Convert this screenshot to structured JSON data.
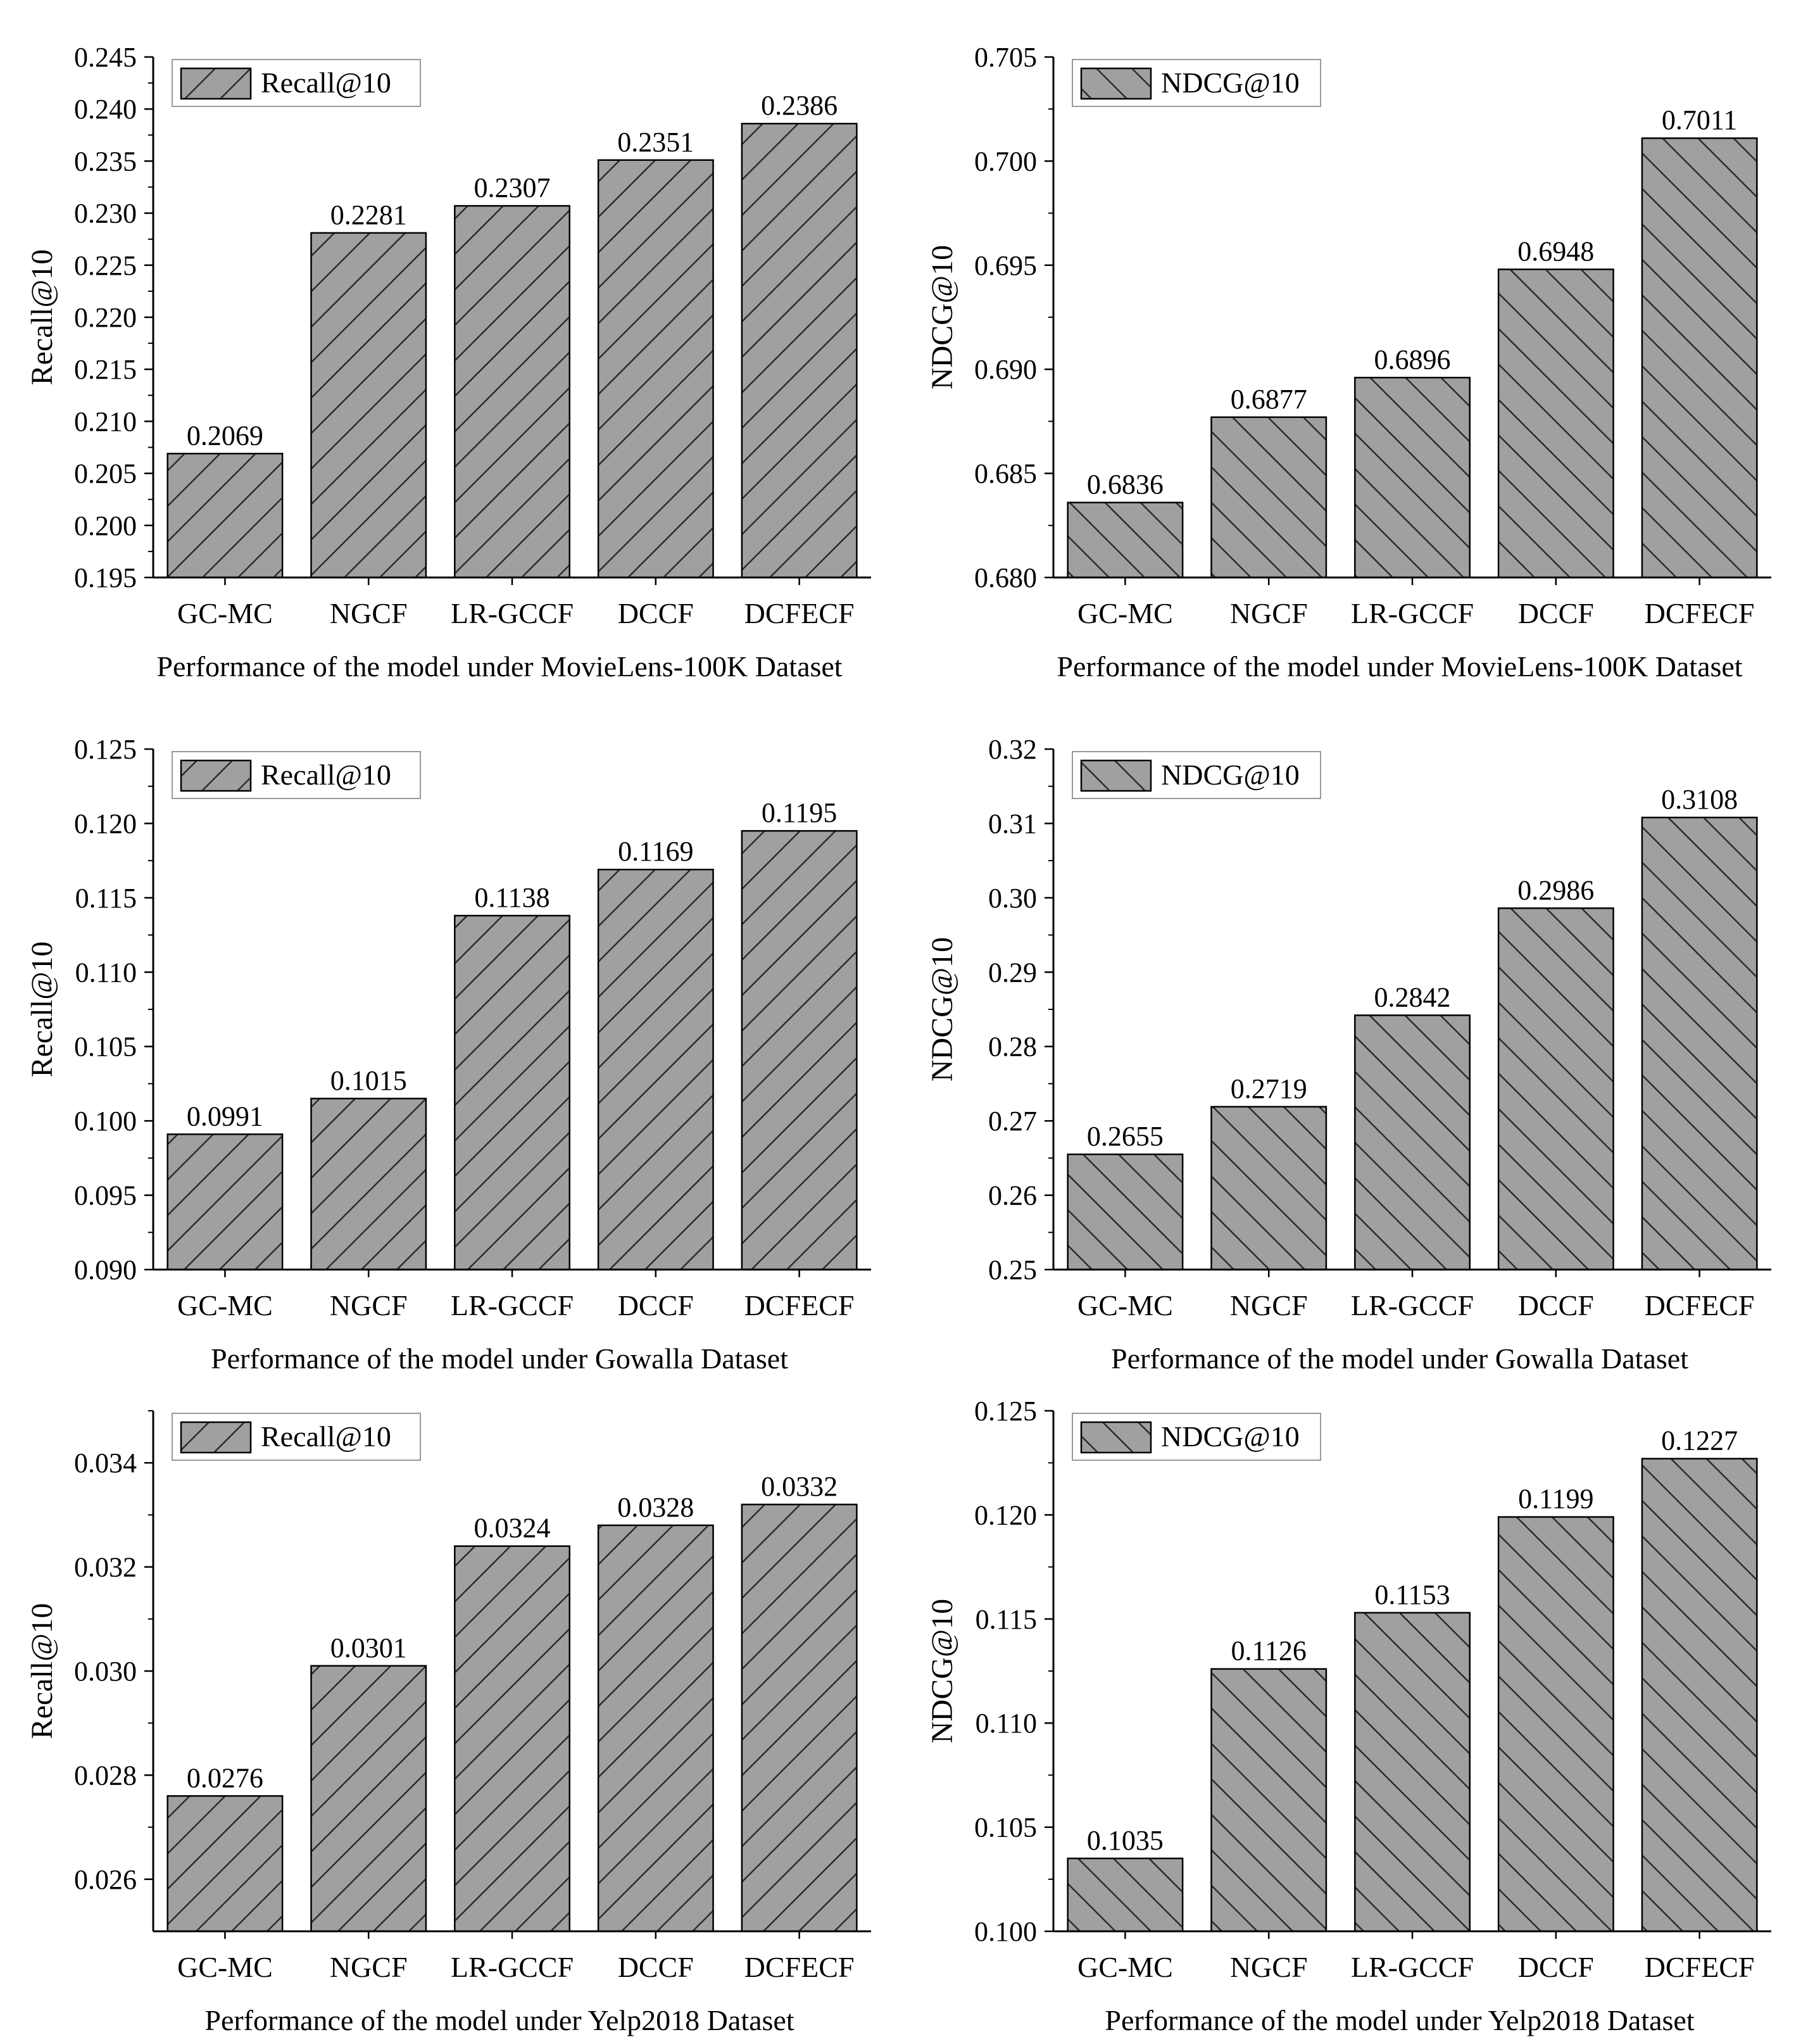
{
  "bar_color": "#a0a0a0",
  "edge_color": "#000000",
  "chart_data": [
    {
      "type": "bar",
      "title": "Performance of the model under MovieLens-100K Dataset",
      "ylabel": "Recall@10",
      "legend": "Recall@10",
      "legend_position": "top-left",
      "hatch": "forward",
      "categories": [
        "GC-MC",
        "NGCF",
        "LR-GCCF",
        "DCCF",
        "DCFECF"
      ],
      "values": [
        0.2069,
        0.2281,
        0.2307,
        0.2351,
        0.2386
      ],
      "value_labels": [
        "0.2069",
        "0.2281",
        "0.2307",
        "0.2351",
        "0.2386"
      ],
      "ylim": [
        0.195,
        0.245
      ],
      "yticks": [
        0.195,
        0.2,
        0.205,
        0.21,
        0.215,
        0.22,
        0.225,
        0.23,
        0.235,
        0.24,
        0.245
      ],
      "ytick_labels": [
        "0.195",
        "0.200",
        "0.205",
        "0.210",
        "0.215",
        "0.220",
        "0.225",
        "0.230",
        "0.235",
        "0.240",
        "0.245"
      ]
    },
    {
      "type": "bar",
      "title": "Performance of the model under MovieLens-100K Dataset",
      "ylabel": "NDCG@10",
      "legend": "NDCG@10",
      "legend_position": "top-left",
      "hatch": "backward",
      "categories": [
        "GC-MC",
        "NGCF",
        "LR-GCCF",
        "DCCF",
        "DCFECF"
      ],
      "values": [
        0.6836,
        0.6877,
        0.6896,
        0.6948,
        0.7011
      ],
      "value_labels": [
        "0.6836",
        "0.6877",
        "0.6896",
        "0.6948",
        "0.7011"
      ],
      "ylim": [
        0.68,
        0.705
      ],
      "yticks": [
        0.68,
        0.685,
        0.69,
        0.695,
        0.7,
        0.705
      ],
      "ytick_labels": [
        "0.680",
        "0.685",
        "0.690",
        "0.695",
        "0.700",
        "0.705"
      ]
    },
    {
      "type": "bar",
      "title": "Performance of the model under Gowalla Dataset",
      "ylabel": "Recall@10",
      "legend": "Recall@10",
      "legend_position": "top-left",
      "hatch": "forward",
      "categories": [
        "GC-MC",
        "NGCF",
        "LR-GCCF",
        "DCCF",
        "DCFECF"
      ],
      "values": [
        0.0991,
        0.1015,
        0.1138,
        0.1169,
        0.1195
      ],
      "value_labels": [
        "0.0991",
        "0.1015",
        "0.1138",
        "0.1169",
        "0.1195"
      ],
      "ylim": [
        0.09,
        0.125
      ],
      "yticks": [
        0.09,
        0.095,
        0.1,
        0.105,
        0.11,
        0.115,
        0.12,
        0.125
      ],
      "ytick_labels": [
        "0.090",
        "0.095",
        "0.100",
        "0.105",
        "0.110",
        "0.115",
        "0.120",
        "0.125"
      ]
    },
    {
      "type": "bar",
      "title": "Performance of the model under Gowalla Dataset",
      "ylabel": "NDCG@10",
      "legend": "NDCG@10",
      "legend_position": "top-left",
      "hatch": "backward",
      "categories": [
        "GC-MC",
        "NGCF",
        "LR-GCCF",
        "DCCF",
        "DCFECF"
      ],
      "values": [
        0.2655,
        0.2719,
        0.2842,
        0.2986,
        0.3108
      ],
      "value_labels": [
        "0.2655",
        "0.2719",
        "0.2842",
        "0.2986",
        "0.3108"
      ],
      "ylim": [
        0.25,
        0.32
      ],
      "yticks": [
        0.25,
        0.26,
        0.27,
        0.28,
        0.29,
        0.3,
        0.31,
        0.32
      ],
      "ytick_labels": [
        "0.25",
        "0.26",
        "0.27",
        "0.28",
        "0.29",
        "0.30",
        "0.31",
        "0.32"
      ]
    },
    {
      "type": "bar",
      "title": "Performance of the model under Yelp2018 Dataset",
      "ylabel": "Recall@10",
      "legend": "Recall@10",
      "legend_position": "top-left",
      "hatch": "forward",
      "categories": [
        "GC-MC",
        "NGCF",
        "LR-GCCF",
        "DCCF",
        "DCFECF"
      ],
      "values": [
        0.0276,
        0.0301,
        0.0324,
        0.0328,
        0.0332
      ],
      "value_labels": [
        "0.0276",
        "0.0301",
        "0.0324",
        "0.0328",
        "0.0332"
      ],
      "ylim": [
        0.025,
        0.035
      ],
      "yticks": [
        0.026,
        0.028,
        0.03,
        0.032,
        0.034
      ],
      "ytick_labels": [
        "0.026",
        "0.028",
        "0.030",
        "0.032",
        "0.034"
      ]
    },
    {
      "type": "bar",
      "title": "Performance of the model under Yelp2018 Dataset",
      "ylabel": "NDCG@10",
      "legend": "NDCG@10",
      "legend_position": "top-left",
      "hatch": "backward",
      "categories": [
        "GC-MC",
        "NGCF",
        "LR-GCCF",
        "DCCF",
        "DCFECF"
      ],
      "values": [
        0.1035,
        0.1126,
        0.1153,
        0.1199,
        0.1227
      ],
      "value_labels": [
        "0.1035",
        "0.1126",
        "0.1153",
        "0.1199",
        "0.1227"
      ],
      "ylim": [
        0.1,
        0.125
      ],
      "yticks": [
        0.1,
        0.105,
        0.11,
        0.115,
        0.12,
        0.125
      ],
      "ytick_labels": [
        "0.100",
        "0.105",
        "0.110",
        "0.115",
        "0.120",
        "0.125"
      ]
    }
  ]
}
